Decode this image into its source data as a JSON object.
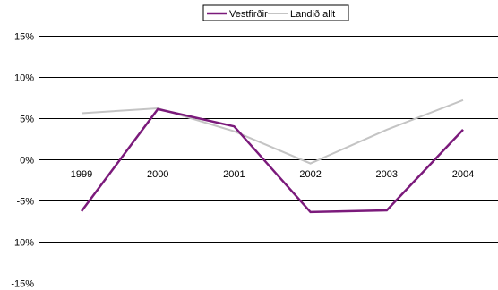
{
  "chart_data": {
    "type": "line",
    "title": "",
    "xlabel": "",
    "ylabel": "",
    "categories": [
      "1999",
      "2000",
      "2001",
      "2002",
      "2003",
      "2004"
    ],
    "y_ticks": [
      "15%",
      "10%",
      "5%",
      "0%",
      "-5%",
      "-10%",
      "-15%"
    ],
    "ylim": [
      -15,
      15
    ],
    "grid": true,
    "legend_position": "top-right",
    "series": [
      {
        "name": "Vestfirðir",
        "color": "#7b1a7b",
        "values": [
          -6.3,
          6.1,
          4.0,
          -6.4,
          -6.2,
          3.6
        ]
      },
      {
        "name": "Landið allt",
        "color": "#c4c4c4",
        "values": [
          5.6,
          6.2,
          3.4,
          -0.5,
          3.6,
          7.2
        ]
      }
    ]
  }
}
